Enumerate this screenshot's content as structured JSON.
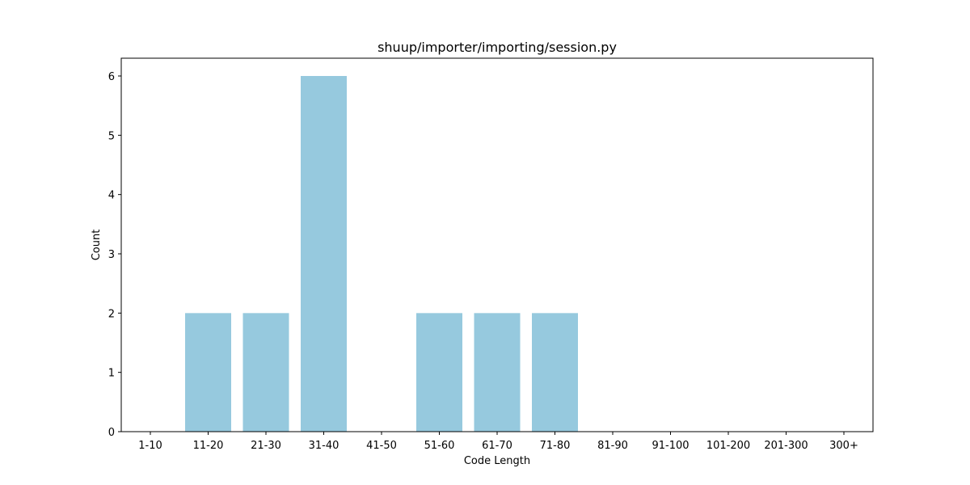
{
  "chart_data": {
    "type": "bar",
    "title": "shuup/importer/importing/session.py",
    "xlabel": "Code Length",
    "ylabel": "Count",
    "categories": [
      "1-10",
      "11-20",
      "21-30",
      "31-40",
      "41-50",
      "51-60",
      "61-70",
      "71-80",
      "81-90",
      "91-100",
      "101-200",
      "201-300",
      "300+"
    ],
    "values": [
      0,
      2,
      2,
      6,
      0,
      2,
      2,
      2,
      0,
      0,
      0,
      0,
      0
    ],
    "yticks": [
      0,
      1,
      2,
      3,
      4,
      5,
      6
    ],
    "ylim": [
      0,
      6.3
    ],
    "grid": false,
    "bar_color": "#96c9de"
  }
}
